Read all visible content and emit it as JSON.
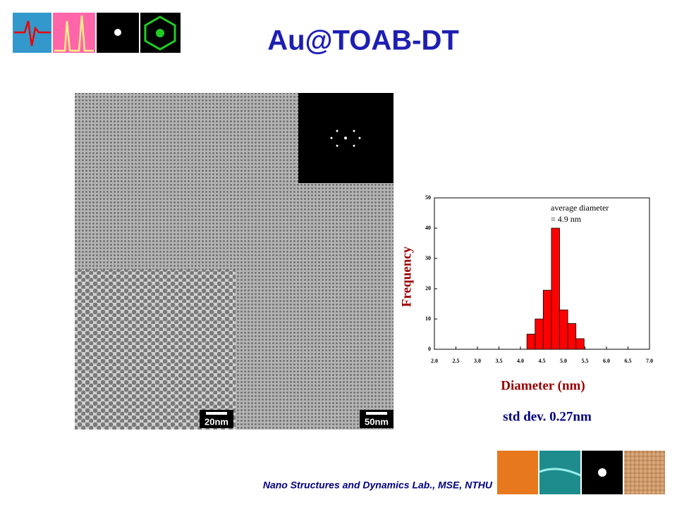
{
  "title": "Au@TOAB-DT",
  "footer": "Nano Structures and Dynamics Lab., MSE, NTHU",
  "image_labels": [
    "20nm",
    "50nm"
  ],
  "chart_data": {
    "type": "histogram",
    "xlabel": "Diameter (nm)",
    "ylabel": "Frequency",
    "annotations": [
      "average diameter",
      "= 4.9 nm"
    ],
    "note": "std dev. 0.27nm",
    "bins": [
      4.15,
      4.34,
      4.53,
      4.72,
      4.91,
      5.1,
      5.29,
      5.48
    ],
    "values": [
      5,
      10,
      19.5,
      40,
      13,
      8.5,
      3.5
    ],
    "color": "#ff0000",
    "xlim": [
      2,
      7
    ],
    "xticks": [
      {
        "value": 2,
        "label": "2.0"
      },
      2.5,
      {
        "value": 3,
        "label": "3.0"
      },
      3.5,
      {
        "value": 4,
        "label": "4.0"
      },
      4.5,
      {
        "value": 5,
        "label": "5.0"
      },
      5.5,
      {
        "value": 6,
        "label": "6.0"
      },
      6.5,
      {
        "value": 7,
        "label": "7.0"
      }
    ],
    "ylim": [
      0,
      50
    ],
    "yticks": [
      0,
      10,
      20,
      30,
      40,
      50
    ]
  }
}
